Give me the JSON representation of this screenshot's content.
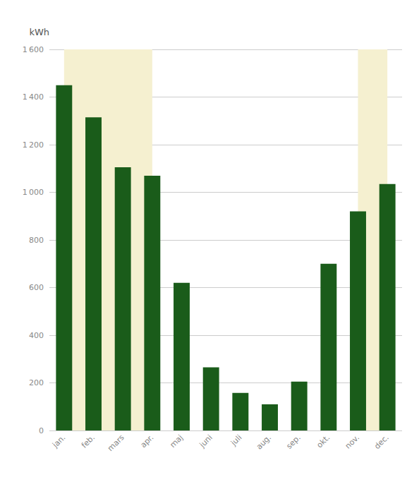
{
  "chart_data": {
    "type": "bar",
    "ylabel": "kWh",
    "categories": [
      "jan.",
      "feb.",
      "mars",
      "apr.",
      "maj",
      "juni",
      "juli",
      "aug.",
      "sep.",
      "okt.",
      "nov.",
      "dec."
    ],
    "values": [
      1450,
      1315,
      1105,
      1070,
      620,
      265,
      158,
      110,
      205,
      700,
      920,
      1035
    ],
    "color": "#1a5c1a",
    "ylim": [
      0,
      1600
    ],
    "yticks": [
      0,
      200,
      400,
      600,
      800,
      {
        "value": 1000,
        "label": "1 000"
      },
      {
        "value": 1200,
        "label": "1 200"
      },
      {
        "value": 1400,
        "label": "1 400"
      },
      {
        "value": 1600,
        "label": "1 600"
      }
    ],
    "grid": true,
    "highlights": [
      {
        "from": "jan.",
        "to": "apr.",
        "color": "#f5f0d0"
      },
      {
        "from": "nov.",
        "to": "dec.",
        "color": "#f5f0d0"
      }
    ]
  }
}
